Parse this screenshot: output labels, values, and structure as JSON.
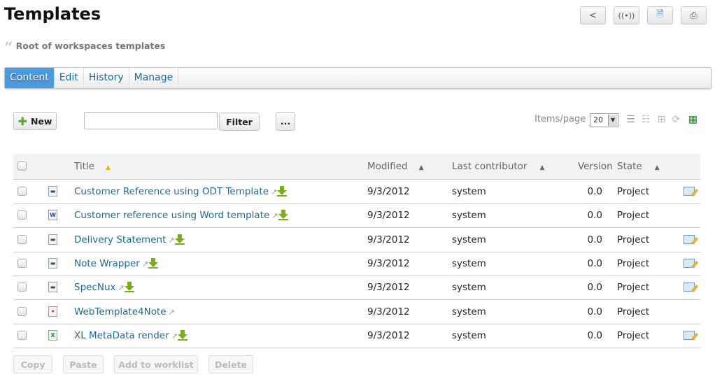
{
  "page": {
    "title": "Templates",
    "description": "Root of workspaces templates"
  },
  "toolbar": {
    "icons": [
      "share-icon",
      "subscribe-icon",
      "export-icon",
      "print-icon"
    ]
  },
  "tabs": [
    {
      "label": "Content",
      "active": true
    },
    {
      "label": "Edit"
    },
    {
      "label": "History"
    },
    {
      "label": "Manage"
    }
  ],
  "actions": {
    "new_label": "New",
    "filter_label": "Filter",
    "more_label": "...",
    "filter_value": "",
    "items_per_page_label": "Items/page",
    "items_per_page": "20"
  },
  "table": {
    "headers": {
      "title": "Title",
      "modified": "Modified",
      "contributor": "Last contributor",
      "version": "Version",
      "state": "State"
    },
    "rows": [
      {
        "icon": "odt",
        "title": "Customer Reference using ODT Template",
        "download": true,
        "modified": "9/3/2012",
        "contributor": "system",
        "version": "0.0",
        "state": "Project",
        "editable": true
      },
      {
        "icon": "word",
        "title": "Customer reference using Word template",
        "download": true,
        "modified": "9/3/2012",
        "contributor": "system",
        "version": "0.0",
        "state": "Project",
        "editable": false
      },
      {
        "icon": "odt",
        "title": "Delivery Statement",
        "download": true,
        "modified": "9/3/2012",
        "contributor": "system",
        "version": "0.0",
        "state": "Project",
        "editable": true
      },
      {
        "icon": "odt",
        "title": "Note Wrapper",
        "download": true,
        "modified": "9/3/2012",
        "contributor": "system",
        "version": "0.0",
        "state": "Project",
        "editable": true
      },
      {
        "icon": "odt",
        "title": "SpecNux",
        "download": true,
        "modified": "9/3/2012",
        "contributor": "system",
        "version": "0.0",
        "state": "Project",
        "editable": true
      },
      {
        "icon": "web",
        "title": "WebTemplate4Note",
        "download": false,
        "modified": "9/3/2012",
        "contributor": "system",
        "version": "0.0",
        "state": "Project",
        "editable": false
      },
      {
        "icon": "excel",
        "title": "XL MetaData render",
        "download": true,
        "modified": "9/3/2012",
        "contributor": "system",
        "version": "0.0",
        "state": "Project",
        "editable": true
      }
    ]
  },
  "bulk_actions": {
    "copy": "Copy",
    "paste": "Paste",
    "worklist": "Add to worklist",
    "delete": "Delete"
  }
}
